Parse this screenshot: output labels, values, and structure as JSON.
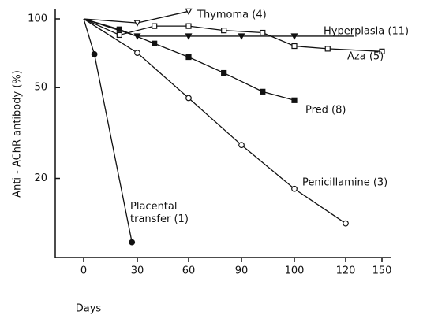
{
  "chart_data": {
    "type": "line",
    "x_label": "Days",
    "y_label": "Anti - AChR antibody (%)",
    "log_scale_y": true,
    "xlim": [
      0,
      150
    ],
    "xticks": [
      0,
      30,
      60,
      90,
      100,
      120,
      150
    ],
    "ylim": [
      9,
      110
    ],
    "yticks": [
      100,
      50,
      20
    ],
    "series": [
      {
        "name": "Thymoma (4)",
        "marker": "open-triangle-down",
        "x": [
          0,
          30,
          60
        ],
        "values": [
          100,
          96,
          108
        ]
      },
      {
        "name": "Hyperplasia (11)",
        "marker": "filled-triangle-down",
        "x": [
          0,
          30,
          60,
          90,
          100,
          127
        ],
        "values": [
          100,
          84,
          84,
          84,
          84,
          84
        ]
      },
      {
        "name": "Aza (5)",
        "marker": "open-square",
        "x": [
          0,
          20,
          40,
          60,
          80,
          94,
          100,
          113,
          150
        ],
        "values": [
          100,
          85,
          93,
          93,
          89,
          87,
          76,
          74,
          72
        ]
      },
      {
        "name": "Pred (8)",
        "marker": "filled-square",
        "x": [
          0,
          20,
          40,
          60,
          80,
          94,
          100
        ],
        "values": [
          100,
          90,
          78,
          68,
          58,
          48,
          44
        ]
      },
      {
        "name": "Penicillamine (3)",
        "marker": "open-circle",
        "x": [
          0,
          30,
          60,
          90,
          100,
          120
        ],
        "values": [
          100,
          71,
          45,
          28,
          18,
          12.7
        ]
      },
      {
        "name": "Placental transfer (1)",
        "marker": "filled-circle",
        "x": [
          0,
          6,
          27
        ],
        "values": [
          100,
          70,
          10.5
        ]
      }
    ]
  }
}
